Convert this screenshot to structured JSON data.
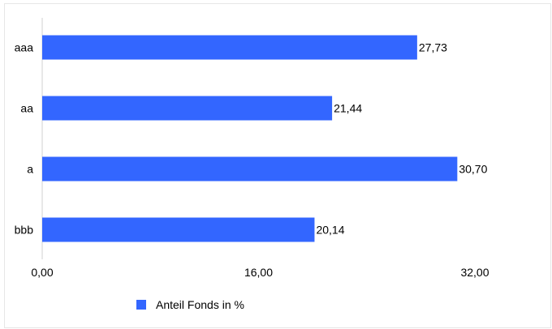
{
  "chart_data": {
    "type": "bar",
    "orientation": "horizontal",
    "categories": [
      "aaa",
      "aa",
      "a",
      "bbb"
    ],
    "series": [
      {
        "name": "Anteil Fonds in %",
        "values": [
          27.73,
          21.44,
          30.7,
          20.14
        ],
        "color": "#3366ff"
      }
    ],
    "data_labels": [
      "27,73",
      "21,44",
      "30,70",
      "20,14"
    ],
    "xlim": [
      0,
      32
    ],
    "x_ticks": [
      0,
      16,
      32
    ],
    "x_tick_labels": [
      "0,00",
      "16,00",
      "32,00"
    ],
    "grid": false,
    "legend_position": "bottom"
  }
}
